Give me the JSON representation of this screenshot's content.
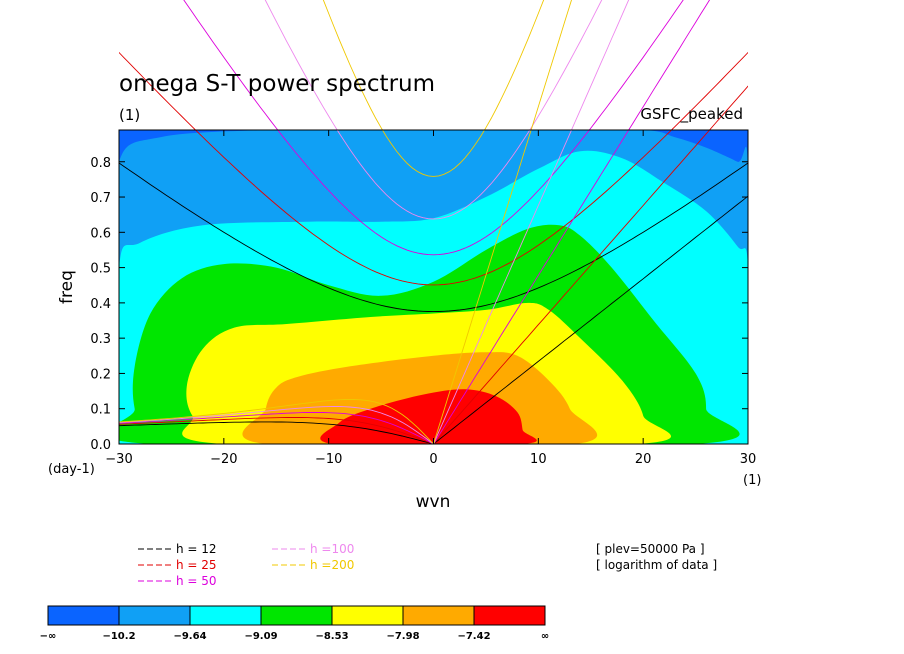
{
  "chart_data": {
    "type": "heatmap",
    "title": "omega S-T power spectrum",
    "subtitle": "(1)",
    "top_right_label": "GSFC_peaked",
    "xlabel": "wvn",
    "ylabel": "freq",
    "x_unit": "(1)",
    "y_unit": "(day-1)",
    "xlim": [
      -30,
      30
    ],
    "ylim": [
      0,
      0.89
    ],
    "x_ticks": [
      -30,
      -20,
      -10,
      0,
      10,
      20,
      30
    ],
    "y_ticks": [
      0.0,
      0.1,
      0.2,
      0.3,
      0.4,
      0.5,
      0.6,
      0.7,
      0.8
    ],
    "x_tick_labels": [
      "−30",
      "−20",
      "−10",
      "0",
      "10",
      "20",
      "30"
    ],
    "y_tick_labels": [
      "0.0",
      "0.1",
      "0.2",
      "0.3",
      "0.4",
      "0.5",
      "0.6",
      "0.7",
      "0.8"
    ],
    "notes": [
      "[ plev=50000 Pa ]",
      "[ logarithm of data ]"
    ],
    "colorbar": {
      "colors": [
        "#0a64ff",
        "#10a0f5",
        "#00ffff",
        "#00e600",
        "#ffff00",
        "#ffaa00",
        "#ff0000"
      ],
      "labels": [
        "−∞",
        "−10.2",
        "−9.64",
        "−9.09",
        "−8.53",
        "−7.98",
        "−7.42",
        "∞"
      ]
    },
    "contour_levels": [
      {
        "level": "level1_-10.2",
        "color": "#10a0f5",
        "boundary_wvn_freq": [
          [
            -30,
            0.5
          ],
          [
            -30,
            0.8
          ],
          [
            -26,
            0.87
          ],
          [
            -15,
            0.89
          ],
          [
            0,
            0.89
          ],
          [
            10,
            0.89
          ],
          [
            20,
            0.89
          ],
          [
            23,
            0.87
          ],
          [
            26,
            0.84
          ],
          [
            29,
            0.8
          ],
          [
            30,
            0.78
          ],
          [
            30,
            0
          ],
          [
            -30,
            0
          ]
        ]
      },
      {
        "level": "level2_-9.64",
        "color": "#00ffff",
        "boundary_wvn_freq": [
          [
            -30,
            0
          ],
          [
            -30,
            0.5
          ],
          [
            -28,
            0.57
          ],
          [
            -22,
            0.62
          ],
          [
            -12,
            0.63
          ],
          [
            -5,
            0.63
          ],
          [
            0,
            0.64
          ],
          [
            5,
            0.7
          ],
          [
            10,
            0.78
          ],
          [
            14,
            0.83
          ],
          [
            18,
            0.81
          ],
          [
            22,
            0.74
          ],
          [
            26,
            0.66
          ],
          [
            29,
            0.56
          ],
          [
            30,
            0.5
          ],
          [
            30,
            0
          ]
        ]
      },
      {
        "level": "level3_-9.09",
        "color": "#00e600",
        "boundary_wvn_freq": [
          [
            -27,
            0
          ],
          [
            -28.5,
            0.1
          ],
          [
            -28.5,
            0.22
          ],
          [
            -27,
            0.37
          ],
          [
            -24,
            0.47
          ],
          [
            -20,
            0.51
          ],
          [
            -15,
            0.5
          ],
          [
            -10,
            0.45
          ],
          [
            -5,
            0.42
          ],
          [
            0,
            0.46
          ],
          [
            5,
            0.55
          ],
          [
            9,
            0.61
          ],
          [
            12,
            0.62
          ],
          [
            14,
            0.59
          ],
          [
            17,
            0.5
          ],
          [
            21,
            0.35
          ],
          [
            25,
            0.2
          ],
          [
            26,
            0.1
          ],
          [
            25,
            0
          ]
        ]
      },
      {
        "level": "level4_-8.53",
        "color": "#ffff00",
        "boundary_wvn_freq": [
          [
            -20,
            0
          ],
          [
            -23,
            0.08
          ],
          [
            -23.5,
            0.17
          ],
          [
            -22,
            0.27
          ],
          [
            -19,
            0.33
          ],
          [
            -14,
            0.34
          ],
          [
            -6,
            0.36
          ],
          [
            0,
            0.37
          ],
          [
            5,
            0.38
          ],
          [
            9,
            0.4
          ],
          [
            11,
            0.38
          ],
          [
            14,
            0.3
          ],
          [
            18,
            0.18
          ],
          [
            20,
            0.08
          ],
          [
            19.5,
            0
          ]
        ]
      },
      {
        "level": "level5_-7.98",
        "color": "#ffaa00",
        "boundary_wvn_freq": [
          [
            -16,
            0
          ],
          [
            -16,
            0.1
          ],
          [
            -15,
            0.16
          ],
          [
            -13,
            0.19
          ],
          [
            -8,
            0.22
          ],
          [
            0,
            0.25
          ],
          [
            5,
            0.26
          ],
          [
            8,
            0.25
          ],
          [
            11,
            0.18
          ],
          [
            13,
            0.1
          ],
          [
            13.5,
            0
          ]
        ]
      },
      {
        "level": "level6_-7.42",
        "color": "#ff0000",
        "boundary_wvn_freq": [
          [
            -9.5,
            0
          ],
          [
            -9,
            0.06
          ],
          [
            -6,
            0.1
          ],
          [
            -1,
            0.14
          ],
          [
            3,
            0.155
          ],
          [
            6,
            0.135
          ],
          [
            8,
            0.09
          ],
          [
            8.5,
            0.04
          ],
          [
            8.5,
            0
          ]
        ]
      }
    ],
    "dispersion_curves": [
      {
        "name": "h = 12",
        "color": "#000000"
      },
      {
        "name": "h = 25",
        "color": "#e10000"
      },
      {
        "name": "h = 50",
        "color": "#dc00dc"
      },
      {
        "name": "h =100",
        "color": "#ee88ee"
      },
      {
        "name": "h =200",
        "color": "#f0c800"
      }
    ]
  }
}
